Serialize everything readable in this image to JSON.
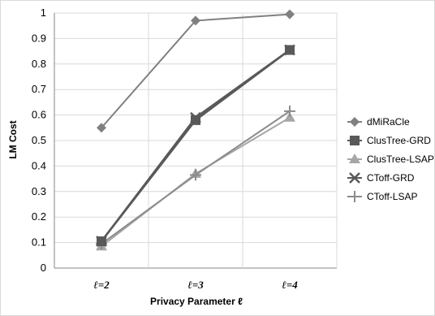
{
  "chart_data": {
    "type": "line",
    "categories": [
      "ℓ=2",
      "ℓ=3",
      "ℓ=4"
    ],
    "xlabel": "Privacy Parameter ℓ",
    "ylabel": "LM Cost",
    "ylim": [
      0,
      1
    ],
    "yticks": [
      "0",
      "0.1",
      "0.2",
      "0.3",
      "0.4",
      "0.5",
      "0.6",
      "0.7",
      "0.8",
      "0.9",
      "1"
    ],
    "grid": true,
    "legend_position": "right",
    "series": [
      {
        "name": "dMiRaCle",
        "values": [
          0.55,
          0.97,
          0.995
        ],
        "color": "#808080",
        "marker": "diamond"
      },
      {
        "name": "ClusTree-GRD",
        "values": [
          0.105,
          0.58,
          0.855
        ],
        "color": "#595959",
        "marker": "square"
      },
      {
        "name": "ClusTree-LSAP",
        "values": [
          0.085,
          0.37,
          0.59
        ],
        "color": "#a6a6a6",
        "marker": "triangle"
      },
      {
        "name": "CToff-GRD",
        "values": [
          0.105,
          0.59,
          0.855
        ],
        "color": "#595959",
        "marker": "x"
      },
      {
        "name": "CToff-LSAP",
        "values": [
          0.095,
          0.365,
          0.615
        ],
        "color": "#8c8c8c",
        "marker": "plus"
      }
    ]
  }
}
